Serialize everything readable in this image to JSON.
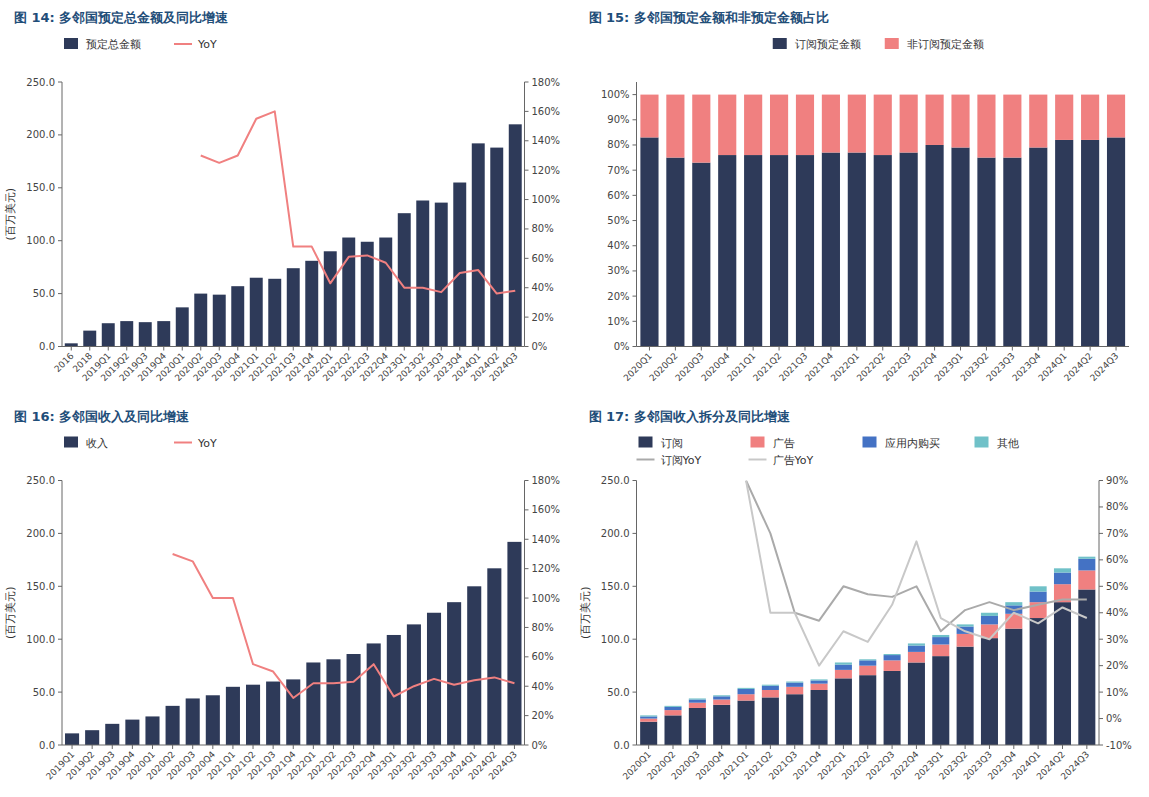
{
  "chart_data": [
    {
      "type": "bar",
      "title": "图 14:  多邻国预定总金额及同比增速",
      "categories": [
        "2016",
        "2018",
        "2019Q1",
        "2019Q2",
        "2019Q3",
        "2019Q4",
        "2020Q1",
        "2020Q2",
        "2020Q3",
        "2020Q4",
        "2021Q1",
        "2021Q2",
        "2021Q3",
        "2021Q4",
        "2022Q1",
        "2022Q2",
        "2022Q3",
        "2022Q4",
        "2023Q1",
        "2023Q2",
        "2023Q3",
        "2023Q4",
        "2024Q1",
        "2024Q2",
        "2024Q3"
      ],
      "series": [
        {
          "name": "预定总金额",
          "type": "bar",
          "color": "#2E3A59",
          "values": [
            3.0,
            15.0,
            22.0,
            24.0,
            23.0,
            24.0,
            37.0,
            50.0,
            49.0,
            57.0,
            65.0,
            64.0,
            74.0,
            81.0,
            90.0,
            103.0,
            99.0,
            103.0,
            126.0,
            138.0,
            136.0,
            155.0,
            192.0,
            188.0,
            210.0
          ]
        },
        {
          "name": "YoY",
          "type": "line",
          "axis": "y2",
          "color": "#F08080",
          "values": [
            null,
            null,
            null,
            null,
            null,
            null,
            null,
            130.0,
            125.0,
            130.0,
            155.0,
            160.0,
            68.0,
            68.0,
            43.0,
            61.0,
            62.0,
            57.0,
            40.0,
            40.0,
            37.0,
            50.0,
            52.0,
            36.0,
            38.0
          ]
        }
      ],
      "y_label": "(百万美元)",
      "ylim": [
        0,
        250
      ],
      "yticks": [
        {
          "value": 0,
          "label": "0.0"
        },
        {
          "value": 50,
          "label": "50.0"
        },
        {
          "value": 100,
          "label": "100.0"
        },
        {
          "value": 150,
          "label": "150.0"
        },
        {
          "value": 200,
          "label": "200.0"
        },
        {
          "value": 250,
          "label": "250.0"
        }
      ],
      "y2lim": [
        0,
        180
      ],
      "y2ticks": [
        {
          "value": 0,
          "label": "0%"
        },
        {
          "value": 20,
          "label": "20%"
        },
        {
          "value": 40,
          "label": "40%"
        },
        {
          "value": 60,
          "label": "60%"
        },
        {
          "value": 80,
          "label": "80%"
        },
        {
          "value": 100,
          "label": "100%"
        },
        {
          "value": 120,
          "label": "120%"
        },
        {
          "value": 140,
          "label": "140%"
        },
        {
          "value": 160,
          "label": "160%"
        },
        {
          "value": 180,
          "label": "180%"
        }
      ],
      "grid": false,
      "legend": "upper left"
    },
    {
      "type": "bar",
      "title": "图 15:  多邻国预定金额和非预定金额占比",
      "categories": [
        "2020Q1",
        "2020Q2",
        "2020Q3",
        "2020Q4",
        "2021Q1",
        "2021Q2",
        "2021Q3",
        "2021Q4",
        "2022Q1",
        "2022Q2",
        "2022Q3",
        "2022Q4",
        "2023Q1",
        "2023Q2",
        "2023Q3",
        "2023Q4",
        "2024Q1",
        "2024Q2",
        "2024Q3"
      ],
      "series": [
        {
          "name": "订阅预定金额",
          "color": "#2E3A59",
          "values": [
            83,
            75,
            73,
            76,
            76,
            76,
            76,
            77,
            77,
            76,
            77,
            80,
            79,
            75,
            75,
            79,
            82,
            82,
            83
          ]
        },
        {
          "name": "非订阅预定金额",
          "color": "#F08080",
          "values": [
            17,
            25,
            27,
            24,
            24,
            24,
            24,
            23,
            23,
            24,
            23,
            20,
            21,
            25,
            25,
            21,
            18,
            18,
            17
          ]
        }
      ],
      "stacked": true,
      "ylim": [
        0,
        105
      ],
      "yticks": [
        {
          "value": 0,
          "label": "0%"
        },
        {
          "value": 10,
          "label": "10%"
        },
        {
          "value": 20,
          "label": "20%"
        },
        {
          "value": 30,
          "label": "30%"
        },
        {
          "value": 40,
          "label": "40%"
        },
        {
          "value": 50,
          "label": "50%"
        },
        {
          "value": 60,
          "label": "60%"
        },
        {
          "value": 70,
          "label": "70%"
        },
        {
          "value": 80,
          "label": "80%"
        },
        {
          "value": 90,
          "label": "90%"
        },
        {
          "value": 100,
          "label": "100%"
        }
      ],
      "grid": false,
      "legend": "upper center"
    },
    {
      "type": "bar",
      "title": "图 16:  多邻国收入及同比增速",
      "categories": [
        "2019Q1",
        "2019Q2",
        "2019Q3",
        "2019Q4",
        "2020Q1",
        "2020Q2",
        "2020Q3",
        "2020Q4",
        "2021Q1",
        "2021Q2",
        "2021Q3",
        "2021Q4",
        "2022Q1",
        "2022Q2",
        "2022Q3",
        "2022Q4",
        "2023Q1",
        "2023Q2",
        "2023Q3",
        "2023Q4",
        "2024Q1",
        "2024Q2",
        "2024Q3"
      ],
      "series": [
        {
          "name": "收入",
          "type": "bar",
          "color": "#2E3A59",
          "values": [
            11.0,
            14.0,
            20.0,
            24.0,
            27.0,
            37.0,
            44.0,
            47.0,
            55.0,
            57.0,
            60.0,
            62.0,
            78.0,
            81.0,
            86.0,
            96.0,
            104.0,
            114.0,
            125.0,
            135.0,
            150.0,
            167.0,
            192.0
          ]
        },
        {
          "name": "YoY",
          "type": "line",
          "axis": "y2",
          "color": "#F08080",
          "values": [
            null,
            null,
            null,
            null,
            null,
            130.0,
            125.0,
            100.0,
            100.0,
            55.0,
            50.0,
            32.0,
            42.0,
            42.0,
            43.0,
            55.0,
            33.0,
            40.0,
            45.0,
            41.0,
            44.0,
            46.0,
            42.0
          ]
        }
      ],
      "y_label": "(百万美元)",
      "ylim": [
        0,
        250
      ],
      "yticks": [
        {
          "value": 0,
          "label": "0.0"
        },
        {
          "value": 50,
          "label": "50.0"
        },
        {
          "value": 100,
          "label": "100.0"
        },
        {
          "value": 150,
          "label": "150.0"
        },
        {
          "value": 200,
          "label": "200.0"
        },
        {
          "value": 250,
          "label": "250.0"
        }
      ],
      "y2lim": [
        0,
        180
      ],
      "y2ticks": [
        {
          "value": 0,
          "label": "0%"
        },
        {
          "value": 20,
          "label": "20%"
        },
        {
          "value": 40,
          "label": "40%"
        },
        {
          "value": 60,
          "label": "60%"
        },
        {
          "value": 80,
          "label": "80%"
        },
        {
          "value": 100,
          "label": "100%"
        },
        {
          "value": 120,
          "label": "120%"
        },
        {
          "value": 140,
          "label": "140%"
        },
        {
          "value": 160,
          "label": "160%"
        },
        {
          "value": 180,
          "label": "180%"
        }
      ],
      "grid": false,
      "legend": "upper left"
    },
    {
      "type": "bar",
      "title": "图 17:  多邻国收入拆分及同比增速",
      "categories": [
        "2020Q1",
        "2020Q2",
        "2020Q3",
        "2020Q4",
        "2021Q1",
        "2021Q2",
        "2021Q3",
        "2021Q4",
        "2022Q1",
        "2022Q2",
        "2022Q3",
        "2022Q4",
        "2023Q1",
        "2023Q2",
        "2023Q3",
        "2023Q4",
        "2024Q1",
        "2024Q2",
        "2024Q3"
      ],
      "series": [
        {
          "name": "订阅",
          "type": "bar",
          "color": "#2E3A59",
          "values": [
            22.0,
            28.0,
            35.0,
            38.0,
            42.0,
            45.0,
            48.0,
            52.0,
            63.0,
            66.0,
            70.0,
            78.0,
            84.0,
            93.0,
            101.0,
            110.0,
            120.0,
            135.0,
            147.0
          ]
        },
        {
          "name": "广告",
          "type": "bar",
          "color": "#F08080",
          "values": [
            3.0,
            5.0,
            5.0,
            5.0,
            6.0,
            7.0,
            7.0,
            6.0,
            8.0,
            9.0,
            10.0,
            10.0,
            11.0,
            12.0,
            13.0,
            14.0,
            15.0,
            17.0,
            18.0
          ]
        },
        {
          "name": "应用内购买",
          "type": "bar",
          "color": "#4472C4",
          "values": [
            2.0,
            3.0,
            3.0,
            3.0,
            5.0,
            4.0,
            4.0,
            3.0,
            5.0,
            5.0,
            5.0,
            6.0,
            7.0,
            7.0,
            8.0,
            8.0,
            10.0,
            11.0,
            11.0
          ]
        },
        {
          "name": "其他",
          "type": "bar",
          "color": "#70C1C8",
          "values": [
            1.0,
            1.0,
            1.0,
            1.0,
            1.0,
            1.0,
            1.0,
            1.0,
            2.0,
            1.0,
            1.0,
            2.0,
            2.0,
            2.0,
            3.0,
            3.0,
            5.0,
            4.0,
            2.0
          ]
        },
        {
          "name": "订阅YoY",
          "type": "line",
          "axis": "y2",
          "color": "#AAAAAA",
          "values": [
            null,
            null,
            null,
            null,
            90.0,
            70.0,
            40.0,
            37.0,
            50.0,
            47.0,
            46.0,
            50.0,
            33.0,
            41.0,
            44.0,
            41.0,
            43.0,
            45.0,
            45.0
          ]
        },
        {
          "name": "广告YoY",
          "type": "line",
          "axis": "y2",
          "color": "#C8C8C8",
          "values": [
            null,
            null,
            null,
            null,
            90.0,
            40.0,
            40.0,
            20.0,
            33.0,
            29.0,
            43.0,
            67.0,
            38.0,
            33.0,
            30.0,
            40.0,
            36.0,
            42.0,
            38.0
          ]
        }
      ],
      "stacked": true,
      "y_label": "(百万美元)",
      "ylim": [
        0,
        250
      ],
      "yticks": [
        {
          "value": 0,
          "label": "0.0"
        },
        {
          "value": 50,
          "label": "50.0"
        },
        {
          "value": 100,
          "label": "100.0"
        },
        {
          "value": 150,
          "label": "150.0"
        },
        {
          "value": 200,
          "label": "200.0"
        },
        {
          "value": 250,
          "label": "250.0"
        }
      ],
      "y2lim": [
        -10,
        90
      ],
      "y2ticks": [
        {
          "value": -10,
          "label": "-10%"
        },
        {
          "value": 0,
          "label": "0%"
        },
        {
          "value": 10,
          "label": "10%"
        },
        {
          "value": 20,
          "label": "20%"
        },
        {
          "value": 30,
          "label": "30%"
        },
        {
          "value": 40,
          "label": "40%"
        },
        {
          "value": 50,
          "label": "50%"
        },
        {
          "value": 60,
          "label": "60%"
        },
        {
          "value": 70,
          "label": "70%"
        },
        {
          "value": 80,
          "label": "80%"
        },
        {
          "value": 90,
          "label": "90%"
        }
      ],
      "grid": false,
      "legend": "upper left"
    }
  ]
}
